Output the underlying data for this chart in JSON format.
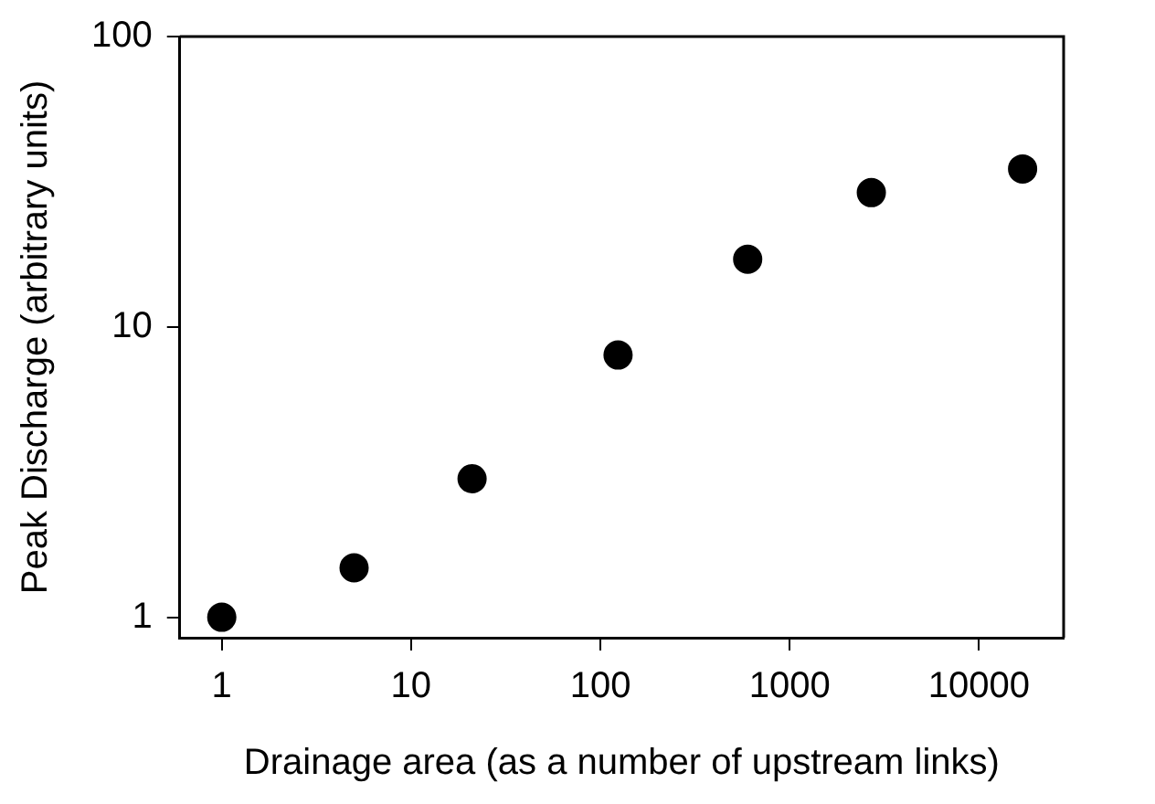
{
  "chart_data": {
    "type": "scatter",
    "xlabel": "Drainage area (as a number of upstream links)",
    "ylabel": "Peak Discharge (arbitrary units)",
    "x": [
      1,
      5,
      21,
      124,
      600,
      2700,
      17000
    ],
    "series": [
      {
        "color": "#000000",
        "values": [
          1,
          1.48,
          3.0,
          8.0,
          17.1,
          29,
          35
        ]
      }
    ],
    "log": "xy",
    "xlim": [
      0.6,
      28000
    ],
    "ylim": [
      0.85,
      100
    ],
    "xticks": [
      1,
      10,
      100,
      1000,
      10000
    ],
    "yticks": [
      1,
      10,
      100
    ],
    "grid": false,
    "legend": false,
    "marker": "circle"
  }
}
